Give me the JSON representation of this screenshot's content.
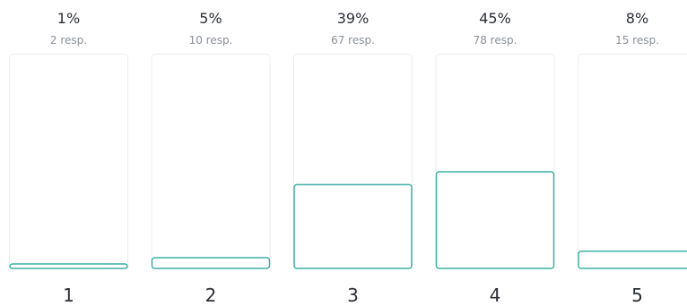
{
  "chart_data": {
    "type": "bar",
    "categories": [
      "1",
      "2",
      "3",
      "4",
      "5"
    ],
    "values": [
      1,
      5,
      39,
      45,
      8
    ],
    "percent_labels": [
      "1%",
      "5%",
      "39%",
      "45%",
      "8%"
    ],
    "response_labels": [
      "2 resp.",
      "10 resp.",
      "67 resp.",
      "78 resp.",
      "15 resp."
    ],
    "ylim": [
      0,
      100
    ],
    "grid": false,
    "colors": {
      "bar_outline": "#3fb0a3",
      "track_outline": "#ecedef"
    }
  }
}
